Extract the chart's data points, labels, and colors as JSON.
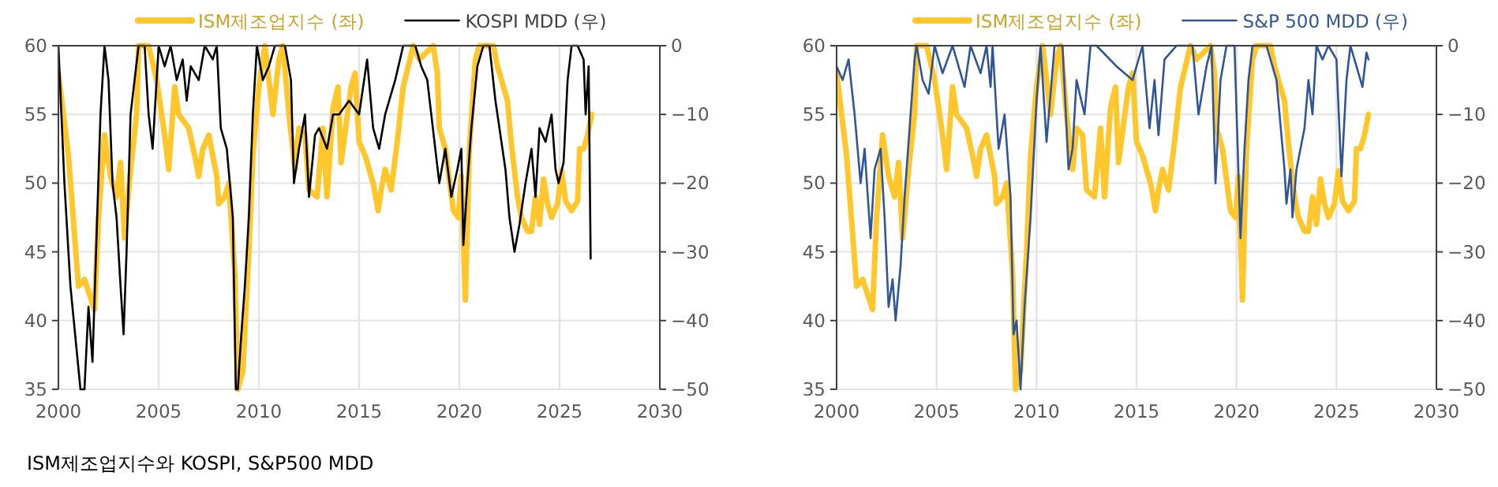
{
  "chart_data": [
    {
      "type": "line",
      "xlim": [
        2000,
        2030
      ],
      "xticks": [
        2000,
        2005,
        2010,
        2015,
        2020,
        2025,
        2030
      ],
      "ylim": [
        35,
        60
      ],
      "yticks": [
        35,
        40,
        45,
        50,
        55,
        60
      ],
      "y2lim": [
        -50,
        0
      ],
      "y2ticks": [
        {
          "value": -50,
          "label": "−50"
        },
        {
          "value": -40,
          "label": "−40"
        },
        {
          "value": -30,
          "label": "−30"
        },
        {
          "value": -20,
          "label": "−20"
        },
        {
          "value": -10,
          "label": "−10"
        },
        0
      ],
      "grid": true,
      "legend": "top",
      "annotations": [
        "ISM제조업지수와 KOSPI, S&P500 MDD"
      ],
      "series": [
        {
          "name": "ISM제조업지수 (좌)",
          "color": "#ffc72c",
          "x": [
            2000.0,
            2000.5,
            2001.0,
            2001.3,
            2001.8,
            2002.0,
            2002.3,
            2002.6,
            2002.9,
            2003.1,
            2003.3,
            2003.6,
            2003.9,
            2004.0,
            2004.5,
            2004.9,
            2005.3,
            2005.5,
            2005.8,
            2006.0,
            2006.5,
            2006.8,
            2007.0,
            2007.2,
            2007.5,
            2007.9,
            2008.0,
            2008.3,
            2008.5,
            2008.8,
            2008.95,
            2009.2,
            2009.5,
            2009.7,
            2010.0,
            2010.3,
            2010.7,
            2011.0,
            2011.2,
            2011.5,
            2011.8,
            2012.0,
            2012.3,
            2012.5,
            2012.9,
            2013.2,
            2013.4,
            2013.7,
            2013.95,
            2014.1,
            2014.6,
            2014.8,
            2015.0,
            2015.3,
            2015.7,
            2015.95,
            2016.1,
            2016.3,
            2016.6,
            2016.9,
            2017.2,
            2017.7,
            2018.0,
            2018.7,
            2018.9,
            2019.0,
            2019.3,
            2019.7,
            2019.95,
            2020.1,
            2020.3,
            2020.5,
            2020.8,
            2021.0,
            2021.3,
            2021.7,
            2021.9,
            2022.2,
            2022.4,
            2022.6,
            2022.9,
            2023.1,
            2023.4,
            2023.6,
            2023.8,
            2024.0,
            2024.2,
            2024.4,
            2024.6,
            2024.9,
            2025.1,
            2025.3,
            2025.6,
            2025.9,
            2026.0,
            2026.2,
            2026.4,
            2026.6
          ],
          "values": [
            58,
            52,
            42.5,
            43,
            40.8,
            47.5,
            53.5,
            50.5,
            49,
            51.5,
            46,
            51,
            55,
            60,
            60,
            57.5,
            53.5,
            51,
            57,
            55,
            54,
            52,
            50.5,
            52.5,
            53.5,
            50.5,
            48.5,
            49,
            50,
            43.5,
            35,
            36.3,
            45,
            52,
            57,
            60,
            55,
            59,
            60,
            55,
            51,
            54,
            53.5,
            49.5,
            49,
            54,
            49,
            55.5,
            57,
            51.5,
            57,
            58,
            53,
            52,
            50,
            48,
            49.5,
            51,
            49.5,
            53,
            57,
            60,
            59,
            60,
            58,
            54,
            52.5,
            48,
            47.5,
            50.5,
            41.5,
            52.5,
            59,
            60,
            60,
            60,
            58.5,
            57,
            56,
            52.8,
            49,
            47.5,
            46.5,
            46.5,
            49,
            47,
            50.3,
            48.5,
            47.5,
            48.5,
            50.9,
            48.7,
            48,
            48.7,
            52.5,
            52.5,
            53.5,
            55
          ]
        },
        {
          "name": "KOSPI MDD (우)",
          "color": "#000000",
          "axis": "y2",
          "x": [
            2000.0,
            2000.3,
            2000.6,
            2000.9,
            2001.1,
            2001.3,
            2001.5,
            2001.7,
            2001.9,
            2002.1,
            2002.3,
            2002.5,
            2002.7,
            2002.9,
            2003.1,
            2003.25,
            2003.4,
            2003.6,
            2003.8,
            2004.0,
            2004.3,
            2004.5,
            2004.7,
            2004.9,
            2005.0,
            2005.3,
            2005.6,
            2005.9,
            2006.2,
            2006.4,
            2006.6,
            2007.0,
            2007.3,
            2007.7,
            2007.9,
            2008.1,
            2008.4,
            2008.7,
            2008.85,
            2008.95,
            2009.1,
            2009.3,
            2009.5,
            2009.7,
            2009.9,
            2010.2,
            2010.5,
            2010.8,
            2011.3,
            2011.6,
            2011.75,
            2012.0,
            2012.3,
            2012.5,
            2012.8,
            2013.0,
            2013.4,
            2013.7,
            2014.0,
            2014.5,
            2015.0,
            2015.4,
            2015.7,
            2016.0,
            2016.3,
            2016.8,
            2017.2,
            2017.8,
            2018.1,
            2018.4,
            2018.8,
            2019.0,
            2019.3,
            2019.6,
            2019.9,
            2020.1,
            2020.2,
            2020.4,
            2020.6,
            2020.9,
            2021.2,
            2021.5,
            2021.8,
            2022.0,
            2022.3,
            2022.5,
            2022.75,
            2023.0,
            2023.3,
            2023.6,
            2023.8,
            2024.0,
            2024.3,
            2024.6,
            2024.8,
            2024.95,
            2025.2,
            2025.4,
            2025.6,
            2025.9,
            2026.2,
            2026.3,
            2026.45,
            2026.55
          ],
          "values": [
            0,
            -20,
            -35,
            -44,
            -50,
            -50,
            -38,
            -46,
            -28,
            -10,
            0,
            -5,
            -20,
            -25,
            -35,
            -42,
            -30,
            -10,
            -5,
            0,
            0,
            -10,
            -15,
            -5,
            0,
            -3,
            0,
            -5,
            -2,
            -8,
            -3,
            -5,
            0,
            -2,
            0,
            -12,
            -15,
            -25,
            -50,
            -50,
            -43,
            -35,
            -25,
            -10,
            0,
            -5,
            -3,
            0,
            0,
            -5,
            -20,
            -15,
            -10,
            -22,
            -13,
            -12,
            -15,
            -10,
            -10,
            -8,
            -10,
            -2,
            -12,
            -15,
            -10,
            -5,
            0,
            0,
            -3,
            -5,
            -15,
            -20,
            -15,
            -22,
            -18,
            -15,
            -29,
            -20,
            -12,
            -3,
            0,
            0,
            -8,
            -12,
            -18,
            -25,
            -30,
            -26,
            -20,
            -15,
            -22,
            -12,
            -14,
            -10,
            -18,
            -20,
            -17,
            -5,
            0,
            0,
            -2,
            -10,
            -3,
            -31
          ]
        }
      ]
    },
    {
      "type": "line",
      "xlim": [
        2000,
        2030
      ],
      "xticks": [
        2000,
        2005,
        2010,
        2015,
        2020,
        2025,
        2030
      ],
      "ylim": [
        35,
        60
      ],
      "yticks": [
        35,
        40,
        45,
        50,
        55,
        60
      ],
      "y2lim": [
        -50,
        0
      ],
      "y2ticks": [
        {
          "value": -50,
          "label": "−50"
        },
        {
          "value": -40,
          "label": "−40"
        },
        {
          "value": -30,
          "label": "−30"
        },
        {
          "value": -20,
          "label": "−20"
        },
        {
          "value": -10,
          "label": "−10"
        },
        0
      ],
      "grid": true,
      "legend": "top",
      "series": [
        {
          "name": "ISM제조업지수 (좌)",
          "color": "#ffc72c",
          "x": [
            2000.0,
            2000.5,
            2001.0,
            2001.3,
            2001.8,
            2002.0,
            2002.3,
            2002.6,
            2002.9,
            2003.1,
            2003.3,
            2003.6,
            2003.9,
            2004.0,
            2004.5,
            2004.9,
            2005.3,
            2005.5,
            2005.8,
            2006.0,
            2006.5,
            2006.8,
            2007.0,
            2007.2,
            2007.5,
            2007.9,
            2008.0,
            2008.3,
            2008.5,
            2008.8,
            2008.95,
            2009.2,
            2009.5,
            2009.7,
            2010.0,
            2010.3,
            2010.7,
            2011.0,
            2011.2,
            2011.5,
            2011.8,
            2012.0,
            2012.3,
            2012.5,
            2012.9,
            2013.2,
            2013.4,
            2013.7,
            2013.95,
            2014.1,
            2014.6,
            2014.8,
            2015.0,
            2015.3,
            2015.7,
            2015.95,
            2016.1,
            2016.3,
            2016.6,
            2016.9,
            2017.2,
            2017.7,
            2018.0,
            2018.7,
            2018.9,
            2019.0,
            2019.3,
            2019.7,
            2019.95,
            2020.1,
            2020.3,
            2020.5,
            2020.8,
            2021.0,
            2021.3,
            2021.7,
            2021.9,
            2022.2,
            2022.4,
            2022.6,
            2022.9,
            2023.1,
            2023.4,
            2023.6,
            2023.8,
            2024.0,
            2024.2,
            2024.4,
            2024.6,
            2024.9,
            2025.1,
            2025.3,
            2025.6,
            2025.9,
            2026.0,
            2026.2,
            2026.4,
            2026.6
          ],
          "values": [
            58,
            52,
            42.5,
            43,
            40.8,
            47.5,
            53.5,
            50.5,
            49,
            51.5,
            46,
            51,
            55,
            60,
            60,
            57.5,
            53.5,
            51,
            57,
            55,
            54,
            52,
            50.5,
            52.5,
            53.5,
            50.5,
            48.5,
            49,
            50,
            43.5,
            35,
            36.3,
            45,
            52,
            57,
            60,
            55,
            59,
            60,
            55,
            51,
            54,
            53.5,
            49.5,
            49,
            54,
            49,
            55.5,
            57,
            51.5,
            57,
            58,
            53,
            52,
            50,
            48,
            49.5,
            51,
            49.5,
            53,
            57,
            60,
            59,
            60,
            58,
            54,
            52.5,
            48,
            47.5,
            50.5,
            41.5,
            52.5,
            59,
            60,
            60,
            60,
            58.5,
            57,
            56,
            52.8,
            49,
            47.5,
            46.5,
            46.5,
            49,
            47,
            50.3,
            48.5,
            47.5,
            48.5,
            50.9,
            48.7,
            48,
            48.7,
            52.5,
            52.5,
            53.5,
            55
          ]
        },
        {
          "name": "S&P 500 MDD (우)",
          "color": "#2f5597",
          "axis": "y2",
          "x": [
            2000.0,
            2000.3,
            2000.6,
            2000.9,
            2001.2,
            2001.4,
            2001.7,
            2001.9,
            2002.2,
            2002.4,
            2002.6,
            2002.8,
            2002.95,
            2003.2,
            2003.4,
            2003.7,
            2003.9,
            2004.0,
            2004.3,
            2004.6,
            2004.9,
            2005.3,
            2005.8,
            2006.4,
            2006.7,
            2007.2,
            2007.5,
            2007.7,
            2007.8,
            2008.1,
            2008.4,
            2008.7,
            2008.85,
            2009.0,
            2009.2,
            2009.4,
            2009.7,
            2010.0,
            2010.2,
            2010.5,
            2010.9,
            2011.3,
            2011.6,
            2011.8,
            2012.0,
            2012.4,
            2012.7,
            2013.0,
            2014.0,
            2014.8,
            2015.3,
            2015.65,
            2015.9,
            2016.1,
            2016.4,
            2017.0,
            2017.8,
            2018.1,
            2018.5,
            2018.75,
            2018.95,
            2019.2,
            2019.5,
            2019.9,
            2020.2,
            2020.4,
            2020.6,
            2020.8,
            2021.5,
            2022.0,
            2022.4,
            2022.5,
            2022.7,
            2022.8,
            2023.0,
            2023.4,
            2023.6,
            2023.8,
            2024.0,
            2024.3,
            2024.6,
            2025.0,
            2025.25,
            2025.5,
            2025.7,
            2026.0,
            2026.3,
            2026.5,
            2026.6
          ],
          "values": [
            -3,
            -5,
            -2,
            -10,
            -20,
            -15,
            -28,
            -18,
            -15,
            -25,
            -38,
            -34,
            -40,
            -32,
            -22,
            -10,
            -2,
            0,
            -5,
            -7,
            0,
            -4,
            0,
            -6,
            0,
            -4,
            0,
            -6,
            0,
            -15,
            -10,
            -22,
            -42,
            -40,
            -50,
            -38,
            -25,
            -8,
            0,
            -14,
            0,
            0,
            -18,
            -15,
            -5,
            -10,
            0,
            0,
            -3,
            -5,
            0,
            -12,
            -5,
            -13,
            -2,
            0,
            0,
            -10,
            -3,
            0,
            -20,
            -5,
            0,
            0,
            -28,
            -15,
            -5,
            0,
            0,
            -5,
            -18,
            -23,
            -18,
            -25,
            -18,
            -12,
            -5,
            -10,
            0,
            -2,
            0,
            -2,
            -19,
            -5,
            0,
            -3,
            -6,
            -1,
            -2
          ]
        }
      ]
    }
  ]
}
